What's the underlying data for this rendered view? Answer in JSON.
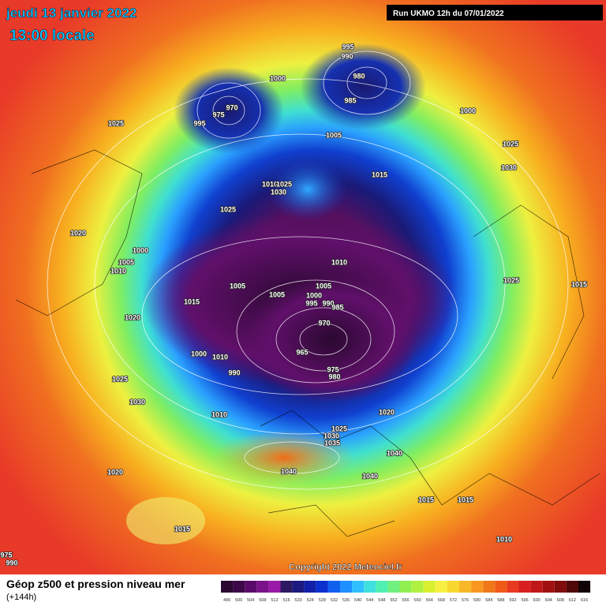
{
  "header": {
    "date": "jeudi 13 janvier 2022",
    "time": "13:00 locale",
    "run": "Run UKMO 12h du 07/01/2022"
  },
  "map": {
    "isobar_labels": [
      995,
      990,
      1000,
      980,
      985,
      970,
      975,
      995,
      1000,
      1025,
      1005,
      1025,
      1030,
      1015,
      1010,
      1025,
      1030,
      1025,
      1020,
      1000,
      1005,
      1010,
      1010,
      1025,
      1015,
      1005,
      1005,
      1005,
      1000,
      995,
      990,
      985,
      1015,
      1020,
      970,
      965,
      1000,
      1010,
      990,
      975,
      980,
      1025,
      1030,
      1010,
      1020,
      1025,
      1030,
      1035,
      1040,
      1040,
      1040,
      1020,
      1015,
      1015,
      1015,
      1010,
      975,
      990
    ]
  },
  "copyright": "Copyright 2022 Meteociel.fr",
  "legend": {
    "title": "Géop z500 et pression niveau mer",
    "lead": "(+144h)",
    "ticks": [
      496,
      500,
      504,
      508,
      512,
      516,
      520,
      524,
      528,
      532,
      536,
      540,
      544,
      548,
      552,
      556,
      560,
      564,
      568,
      572,
      576,
      580,
      584,
      588,
      592,
      596,
      600,
      604,
      608,
      612,
      616
    ],
    "colors": [
      "#2a0a30",
      "#3c0848",
      "#5a0a6a",
      "#7a1288",
      "#9a1aa8",
      "#2c1860",
      "#1a1a80",
      "#1020a8",
      "#0a30d0",
      "#1060f0",
      "#2090ff",
      "#30c0ff",
      "#40e0e0",
      "#50f0b0",
      "#70f080",
      "#90f050",
      "#b0f040",
      "#d8f030",
      "#f8f040",
      "#f8d830",
      "#f8b828",
      "#f89820",
      "#f07818",
      "#f05a18",
      "#e83a20",
      "#d82020",
      "#c01818",
      "#a01010",
      "#800c0c",
      "#500808",
      "#100404"
    ]
  }
}
